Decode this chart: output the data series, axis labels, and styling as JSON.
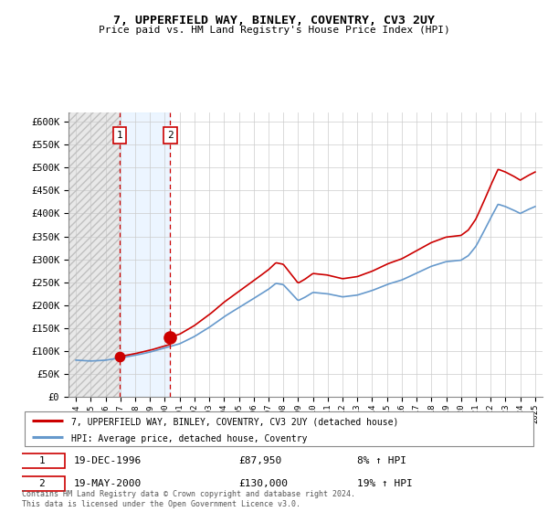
{
  "title1": "7, UPPERFIELD WAY, BINLEY, COVENTRY, CV3 2UY",
  "title2": "Price paid vs. HM Land Registry's House Price Index (HPI)",
  "ylabel_values": [
    "£0",
    "£50K",
    "£100K",
    "£150K",
    "£200K",
    "£250K",
    "£300K",
    "£350K",
    "£400K",
    "£450K",
    "£500K",
    "£550K",
    "£600K"
  ],
  "ylim": [
    0,
    620000
  ],
  "yticks": [
    0,
    50000,
    100000,
    150000,
    200000,
    250000,
    300000,
    350000,
    400000,
    450000,
    500000,
    550000,
    600000
  ],
  "sale1_year": 1996.95,
  "sale1_price": 87950,
  "sale2_year": 2000.37,
  "sale2_price": 130000,
  "sale1_date": "19-DEC-1996",
  "sale2_date": "19-MAY-2000",
  "sale1_hpi_text": "8% ↑ HPI",
  "sale2_hpi_text": "19% ↑ HPI",
  "legend_line1": "7, UPPERFIELD WAY, BINLEY, COVENTRY, CV3 2UY (detached house)",
  "legend_line2": "HPI: Average price, detached house, Coventry",
  "footer": "Contains HM Land Registry data © Crown copyright and database right 2024.\nThis data is licensed under the Open Government Licence v3.0.",
  "hpi_color": "#6699CC",
  "price_color": "#CC0000",
  "grid_color": "#CCCCCC",
  "hatch_color": "#BBBBBB",
  "highlight_color": "#DDEEFF",
  "xmin": 1993.5,
  "xmax": 2025.5
}
